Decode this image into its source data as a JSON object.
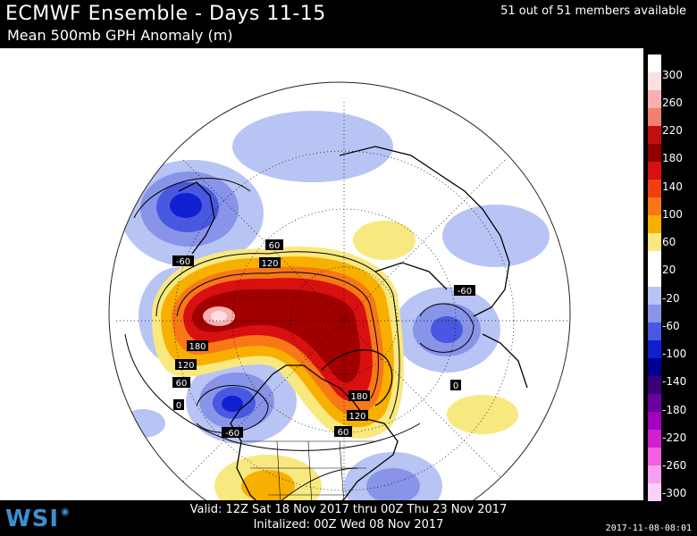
{
  "header": {
    "title": "ECMWF Ensemble - Days 11-15",
    "subtitle": "Mean 500mb GPH Anomaly (m)",
    "members": "51 out of 51 members available"
  },
  "footer": {
    "valid": "Valid: 12Z Sat 18 Nov 2017 thru 00Z Thu 23 Nov 2017",
    "initialized": "Initalized: 00Z Wed 08 Nov 2017",
    "timestamp": "2017-11-08-08:01",
    "logo": "WSI"
  },
  "legend": {
    "labels": [
      "300",
      "260",
      "220",
      "180",
      "140",
      "100",
      "60",
      "20",
      "-20",
      "-60",
      "-100",
      "-140",
      "-180",
      "-220",
      "-260",
      "-300"
    ],
    "colors": [
      "#ffffff",
      "#fce0e0",
      "#f8b0b0",
      "#f08070",
      "#c01010",
      "#900000",
      "#d81010",
      "#f04010",
      "#f87818",
      "#f8b000",
      "#f8e880",
      "#ffffff",
      "#ffffff",
      "#b8c4f4",
      "#8894e8",
      "#4858e0",
      "#1020d0",
      "#000090",
      "#3a0078",
      "#6a00a0",
      "#a000c0",
      "#d020d0",
      "#f060e0",
      "#f8a0f0",
      "#fcd0f8"
    ]
  },
  "map": {
    "contour_labels": [
      "60",
      "120",
      "-60",
      "180",
      "120",
      "60",
      "0",
      "-60",
      "-60",
      "0",
      "180",
      "120",
      "60"
    ]
  }
}
